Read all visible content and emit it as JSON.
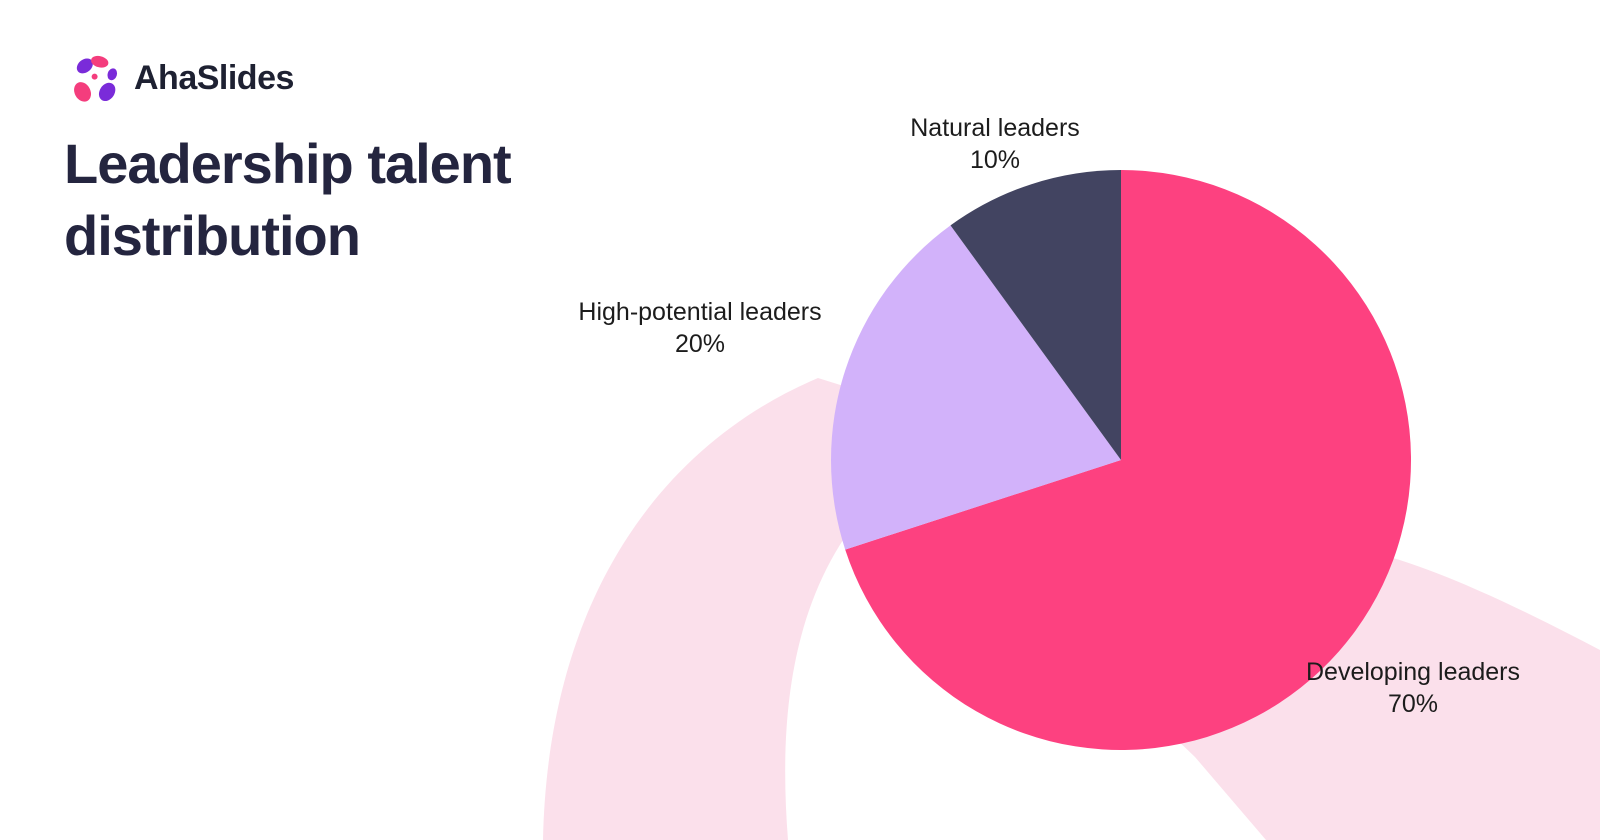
{
  "logo": {
    "brand": "AhaSlides"
  },
  "title_lines": [
    "Leadership talent",
    "distribution"
  ],
  "chart_data": {
    "type": "pie",
    "title": "Leadership talent distribution",
    "start_angle_deg": 0,
    "direction": "clockwise",
    "labels_position": "outside",
    "legend": "none",
    "slices": [
      {
        "label": "Developing leaders",
        "value": 70,
        "pct_label": "70%",
        "color": "#fd4180"
      },
      {
        "label": "High-potential leaders",
        "value": 20,
        "pct_label": "20%",
        "color": "#d2b2fa"
      },
      {
        "label": "Natural leaders",
        "value": 10,
        "pct_label": "10%",
        "color": "#424461"
      }
    ]
  },
  "colors": {
    "background": "#ffffff",
    "swoosh": "#fbe0eb",
    "title_text": "#24253f",
    "label_text": "#1c1c1c",
    "logo_text": "#1e2132",
    "logo_pink": "#f43d7d",
    "logo_purple": "#7a2bd9"
  }
}
